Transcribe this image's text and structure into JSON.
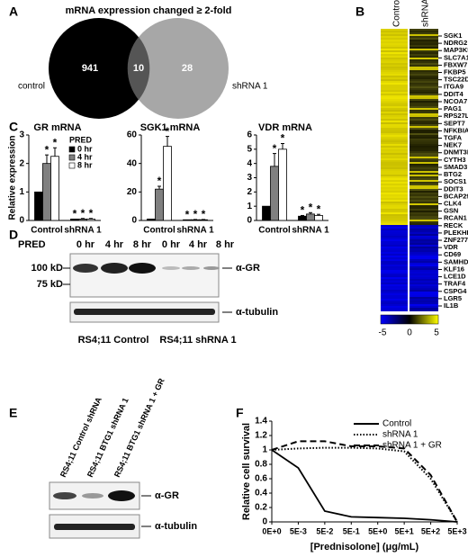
{
  "panels": [
    "A",
    "B",
    "C",
    "D",
    "E",
    "F"
  ],
  "venn": {
    "title": "mRNA expression changed ≥ 2-fold",
    "left_label": "control",
    "right_label": "shRNA 1",
    "left_only": "941",
    "overlap": "10",
    "right_only": "28"
  },
  "heatmap": {
    "columns": [
      "Control",
      "shRNA 1"
    ],
    "genes": [
      "SGK1",
      "NDRG2",
      "MAP3K5",
      "SLC7A11",
      "FBXW7",
      "FKBP5",
      "TSC22D3",
      "ITGA9",
      "DDIT4",
      "NCOA7",
      "PAG1",
      "RPS27L",
      "SEPT7",
      "NFKBIA",
      "TGFA",
      "NEK7",
      "DNMT3B",
      "CYTH3",
      "SMAD3",
      "BTG2",
      "SOCS1",
      "DDIT3",
      "BCAP29",
      "CLK4",
      "GSN",
      "RCAN1",
      "RECK",
      "PLEKHF2",
      "ZNF277",
      "VDR",
      "CD69",
      "SAMHD1",
      "KLF16",
      "LCE1D",
      "TRAF4",
      "CSPG4",
      "LGR5",
      "IL1B"
    ],
    "scale": [
      "-5",
      "0",
      "5"
    ]
  },
  "blot_d": {
    "pred": "PRED",
    "times": [
      "0 hr",
      "4 hr",
      "8 hr",
      "0 hr",
      "4 hr",
      "8 hr"
    ],
    "markers": [
      "100 kD",
      "75 kD"
    ],
    "antibodies": [
      "α-GR",
      "α-tubulin"
    ],
    "groups": [
      "RS4;11 Control",
      "RS4;11 shRNA 1"
    ]
  },
  "blot_e": {
    "lanes": [
      "RS4;11 Control shRNA",
      "RS4;11 BTG1 shRNA 1",
      "RS4;11 BTG1 shRNA 1 + GR"
    ],
    "antibodies": [
      "α-GR",
      "α-tubulin"
    ]
  },
  "chart_data": [
    {
      "type": "bar",
      "title": "GR mRNA",
      "ylabel": "Relative expression",
      "categories": [
        "Control",
        "shRNA 1"
      ],
      "ylim": [
        0,
        3
      ],
      "yticks": [
        0,
        1,
        2,
        3
      ],
      "legend_title": "PRED",
      "marker": "*",
      "starred": [
        [
          false,
          true
        ],
        [
          true,
          true
        ],
        [
          true,
          true
        ]
      ],
      "series": [
        {
          "name": "0 hr",
          "color": "#000000",
          "values": [
            1,
            0.05
          ],
          "errors": [
            0,
            0
          ]
        },
        {
          "name": "4 hr",
          "color": "#808080",
          "values": [
            2.0,
            0.05
          ],
          "errors": [
            0.3,
            0.02
          ]
        },
        {
          "name": "8 hr",
          "color": "#ffffff",
          "values": [
            2.25,
            0.05
          ],
          "errors": [
            0.3,
            0.02
          ]
        }
      ]
    },
    {
      "type": "bar",
      "title": "SGK1 mRNA",
      "categories": [
        "Control",
        "shRNA 1"
      ],
      "ylim": [
        0,
        60
      ],
      "yticks": [
        0,
        20,
        40,
        60
      ],
      "marker": "*",
      "starred": [
        [
          false,
          true
        ],
        [
          true,
          true
        ],
        [
          true,
          true
        ]
      ],
      "series": [
        {
          "name": "0 hr",
          "color": "#000000",
          "values": [
            1,
            0.5
          ],
          "errors": [
            0,
            0
          ]
        },
        {
          "name": "4 hr",
          "color": "#808080",
          "values": [
            22,
            0.5
          ],
          "errors": [
            2,
            0.2
          ]
        },
        {
          "name": "8 hr",
          "color": "#ffffff",
          "values": [
            52,
            0.5
          ],
          "errors": [
            7,
            0.2
          ]
        }
      ]
    },
    {
      "type": "bar",
      "title": "VDR mRNA",
      "categories": [
        "Control",
        "shRNA 1"
      ],
      "ylim": [
        0,
        6
      ],
      "yticks": [
        0,
        1,
        2,
        3,
        4,
        5,
        6
      ],
      "marker": "*",
      "starred": [
        [
          false,
          true
        ],
        [
          true,
          true
        ],
        [
          true,
          true
        ]
      ],
      "series": [
        {
          "name": "0 hr",
          "color": "#000000",
          "values": [
            1,
            0.3
          ],
          "errors": [
            0,
            0.05
          ]
        },
        {
          "name": "4 hr",
          "color": "#808080",
          "values": [
            3.8,
            0.45
          ],
          "errors": [
            0.9,
            0.1
          ]
        },
        {
          "name": "8 hr",
          "color": "#ffffff",
          "values": [
            5.0,
            0.35
          ],
          "errors": [
            0.4,
            0.08
          ]
        }
      ]
    },
    {
      "type": "line",
      "ylabel": "Relative cell survival",
      "xlabel": "[Prednisolone] (μg/mL)",
      "categories": [
        "0E+0",
        "5E-3",
        "5E-2",
        "5E-1",
        "5E+0",
        "5E+1",
        "5E+2",
        "5E+3"
      ],
      "ylim": [
        0,
        1.4
      ],
      "yticks": [
        0,
        0.2,
        0.4,
        0.6,
        0.8,
        1,
        1.2,
        1.4
      ],
      "legend": "top-right",
      "series": [
        {
          "name": "Control",
          "color": "#000000",
          "dash": "solid",
          "values": [
            1,
            0.75,
            0.15,
            0.07,
            0.06,
            0.05,
            0.03,
            0
          ]
        },
        {
          "name": "shRNA 1",
          "color": "#000000",
          "dash": "dotted",
          "values": [
            1,
            1.02,
            1.03,
            1.03,
            1.02,
            0.98,
            0.6,
            0
          ]
        },
        {
          "name": "shRNA 1 + GR",
          "color": "#000000",
          "dash": "dashed",
          "values": [
            1,
            1.12,
            1.12,
            1.05,
            1.05,
            1.02,
            0.65,
            0
          ]
        }
      ]
    }
  ]
}
